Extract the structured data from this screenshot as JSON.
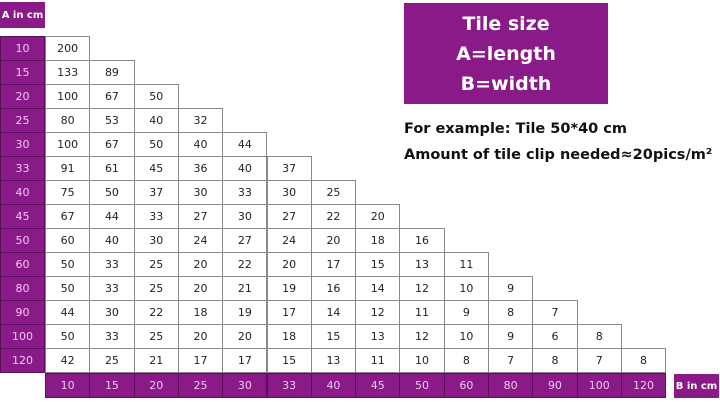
{
  "a_label": "A in cm",
  "b_label": "B in cm",
  "title": {
    "line1": "Tile size",
    "line2": "A=length",
    "line3": "B=width"
  },
  "example": {
    "line1": "For example: Tile 50*40 cm",
    "line2": "Amount of tile clip needed≈20pics/m²"
  },
  "colors": {
    "header": "#8a1a88"
  },
  "table": {
    "a_values": [
      "10",
      "15",
      "20",
      "25",
      "30",
      "33",
      "40",
      "45",
      "50",
      "60",
      "80",
      "90",
      "100",
      "120"
    ],
    "b_values": [
      "10",
      "15",
      "20",
      "25",
      "30",
      "33",
      "40",
      "45",
      "50",
      "60",
      "80",
      "90",
      "100",
      "120"
    ],
    "rows": [
      [
        "200"
      ],
      [
        "133",
        "89"
      ],
      [
        "100",
        "67",
        "50"
      ],
      [
        "80",
        "53",
        "40",
        "32"
      ],
      [
        "100",
        "67",
        "50",
        "40",
        "44"
      ],
      [
        "91",
        "61",
        "45",
        "36",
        "40",
        "37"
      ],
      [
        "75",
        "50",
        "37",
        "30",
        "33",
        "30",
        "25"
      ],
      [
        "67",
        "44",
        "33",
        "27",
        "30",
        "27",
        "22",
        "20"
      ],
      [
        "60",
        "40",
        "30",
        "24",
        "27",
        "24",
        "20",
        "18",
        "16"
      ],
      [
        "50",
        "33",
        "25",
        "20",
        "22",
        "20",
        "17",
        "15",
        "13",
        "11"
      ],
      [
        "50",
        "33",
        "25",
        "20",
        "21",
        "19",
        "16",
        "14",
        "12",
        "10",
        "9"
      ],
      [
        "44",
        "30",
        "22",
        "18",
        "19",
        "17",
        "14",
        "12",
        "11",
        "9",
        "8",
        "7"
      ],
      [
        "50",
        "33",
        "25",
        "20",
        "20",
        "18",
        "15",
        "13",
        "12",
        "10",
        "9",
        "6",
        "8"
      ],
      [
        "42",
        "25",
        "21",
        "17",
        "17",
        "15",
        "13",
        "11",
        "10",
        "8",
        "7",
        "8",
        "7",
        "8"
      ]
    ]
  }
}
